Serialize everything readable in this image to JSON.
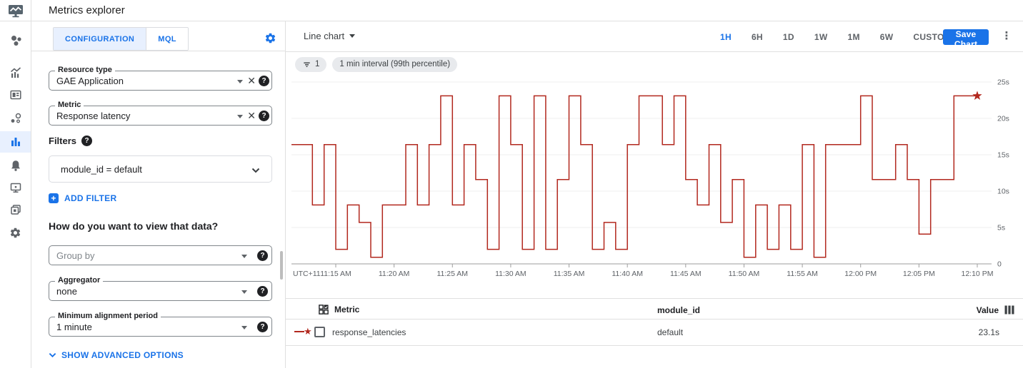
{
  "header": {
    "title": "Metrics explorer"
  },
  "sidebar": {
    "items": [
      {
        "name": "overview"
      },
      {
        "name": "metrics"
      },
      {
        "name": "dashboards"
      },
      {
        "name": "services"
      },
      {
        "name": "metrics-explorer",
        "active": true
      },
      {
        "name": "alerting"
      },
      {
        "name": "uptime-checks"
      },
      {
        "name": "groups"
      },
      {
        "name": "settings"
      }
    ]
  },
  "config_panel": {
    "tabs": [
      {
        "label": "CONFIGURATION",
        "active": true
      },
      {
        "label": "MQL",
        "active": false
      }
    ],
    "resource_type": {
      "label": "Resource type",
      "value": "GAE Application"
    },
    "metric": {
      "label": "Metric",
      "value": "Response latency"
    },
    "filters": {
      "heading": "Filters",
      "value": "module_id = default",
      "add_label": "ADD FILTER"
    },
    "view_heading": "How do you want to view that data?",
    "group_by": {
      "placeholder": "Group by"
    },
    "aggregator": {
      "label": "Aggregator",
      "value": "none"
    },
    "min_alignment": {
      "label": "Minimum alignment period",
      "value": "1 minute"
    },
    "advanced_label": "SHOW ADVANCED OPTIONS"
  },
  "chart_toolbar": {
    "chart_type_label": "Line chart",
    "ranges": [
      "1H",
      "6H",
      "1D",
      "1W",
      "1M",
      "6W",
      "CUSTOM"
    ],
    "active_range": "1H",
    "save_label": "Save Chart",
    "kebab": "⋮"
  },
  "chips": {
    "filter_count": "1",
    "interval_label": "1 min interval (99th percentile)"
  },
  "chart_data": {
    "type": "line",
    "step": true,
    "unit": "seconds",
    "timezone_label": "UTC+11",
    "x_tick_labels": [
      "11:15 AM",
      "11:20 AM",
      "11:25 AM",
      "11:30 AM",
      "11:35 AM",
      "11:40 AM",
      "11:45 AM",
      "11:50 AM",
      "11:55 AM",
      "12:00 PM",
      "12:05 PM",
      "12:10 PM"
    ],
    "y_tick_labels": [
      "25s",
      "20s",
      "15s",
      "10s",
      "5s",
      "0"
    ],
    "ylim": [
      0,
      25
    ],
    "grid": "horizontal",
    "legend_position": "table-below",
    "series": [
      {
        "name": "response_latencies",
        "color": "#b2281e",
        "end_marker": "star",
        "minutes": [
          "11:11",
          "11:12",
          "11:13",
          "11:14",
          "11:15",
          "11:16",
          "11:17",
          "11:18",
          "11:19",
          "11:20",
          "11:21",
          "11:22",
          "11:23",
          "11:24",
          "11:25",
          "11:26",
          "11:27",
          "11:28",
          "11:29",
          "11:30",
          "11:31",
          "11:32",
          "11:33",
          "11:34",
          "11:35",
          "11:36",
          "11:37",
          "11:38",
          "11:39",
          "11:40",
          "11:41",
          "11:42",
          "11:43",
          "11:44",
          "11:45",
          "11:46",
          "11:47",
          "11:48",
          "11:49",
          "11:50",
          "11:51",
          "11:52",
          "11:53",
          "11:54",
          "11:55",
          "11:56",
          "11:57",
          "11:58",
          "11:59",
          "12:00",
          "12:01",
          "12:02",
          "12:03",
          "12:04",
          "12:05",
          "12:06",
          "12:07",
          "12:08",
          "12:09"
        ],
        "values": [
          16.4,
          16.4,
          8.1,
          16.4,
          2.0,
          8.1,
          5.7,
          0.9,
          8.1,
          8.1,
          16.4,
          8.1,
          16.4,
          23.1,
          8.1,
          16.4,
          11.6,
          2.0,
          23.1,
          16.4,
          2.0,
          23.1,
          2.0,
          11.6,
          23.1,
          16.4,
          2.0,
          5.7,
          2.0,
          16.4,
          23.1,
          23.1,
          16.4,
          23.1,
          11.6,
          8.1,
          16.4,
          5.7,
          11.6,
          0.9,
          8.1,
          2.0,
          8.1,
          2.0,
          16.4,
          0.9,
          16.4,
          16.4,
          16.4,
          23.1,
          11.6,
          11.6,
          16.4,
          11.6,
          4.1,
          11.6,
          11.6,
          23.1,
          23.1
        ]
      }
    ],
    "latest_value": "23.1s"
  },
  "table": {
    "metric_header": "Metric",
    "dim_header": "module_id",
    "value_header": "Value",
    "rows": [
      {
        "metric": "response_latencies",
        "module_id": "default",
        "value": "23.1s"
      }
    ]
  },
  "colors": {
    "accent": "#1a73e8",
    "accent_bg": "#e8f0fe",
    "line_red": "#b2281e",
    "chip_bg": "#e8eaed",
    "border": "#e0e0e0",
    "text_primary": "#202124",
    "text_secondary": "#5f6368"
  }
}
